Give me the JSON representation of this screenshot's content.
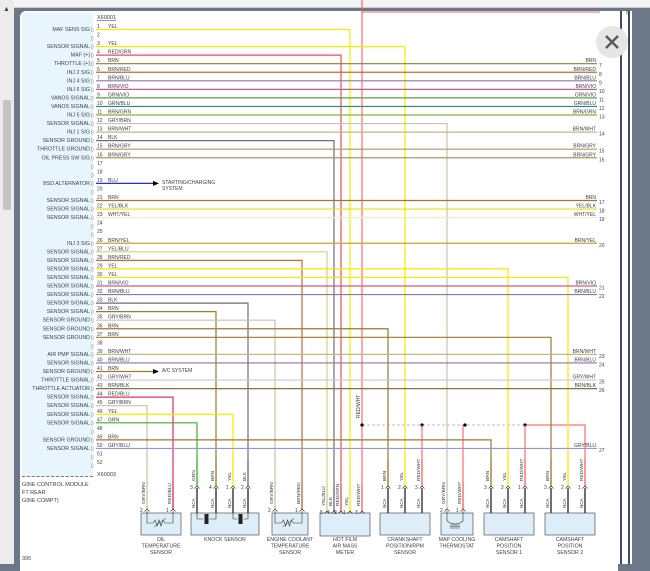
{
  "connector_top": "X60001",
  "connector_bottom": "X60003",
  "module_caption": [
    "GINE CONTROL MODULE",
    "FT REAR",
    "GINE COMPT)"
  ],
  "page_number": "395",
  "top_wire_number": "6",
  "splice_wire_label": "RED/WHT",
  "close_button": {
    "icon": "close-icon"
  },
  "wire_colors": {
    "YEL": "#f2ec00",
    "RED/GRN": "#e2505a",
    "BRN": "#9a7a2e",
    "BRN/RED": "#c46a3a",
    "BRN/BLU": "#8878a8",
    "BRN/VIO": "#d05a82",
    "GRN/VIO": "#5aa04a",
    "GRN/BLU": "#2f8a6a",
    "BRN/GRN": "#88b040",
    "GRY/BRN": "#cac2aa",
    "BRN/WHT": "#c8b486",
    "BLK": "#6e6e6e",
    "BRN/GRY": "#a89860",
    "BLU": "#1e2ee6",
    "YEL/BLK": "#e6e000",
    "WHT/YEL": "#eeeec4",
    "BRN/YEL": "#c4a434",
    "YEL/BLU": "#d8d27a",
    "GRY/WHT": "#c8c8dc",
    "BRN/BLK": "#8a7040",
    "RED/BLU": "#e0305e",
    "GRN": "#3cb02c",
    "GRY/BLU": "#9494e4",
    "RED/WHT": "#ff4c4c"
  },
  "pins": [
    {
      "n": "1",
      "label": "MAF SENS SIG",
      "wire": "YEL",
      "to": {
        "comp": "hfm",
        "pin": "1"
      }
    },
    {
      "n": "2"
    },
    {
      "n": "3",
      "label": "SENSOR SIGNAL",
      "wire": "YEL",
      "to": {
        "comp": "crank",
        "pin": "2"
      }
    },
    {
      "n": "4",
      "label": "MAF (+)",
      "wire": "RED/GRN",
      "to": {
        "comp": "hfm",
        "pin": "2"
      }
    },
    {
      "n": "5",
      "label": "THROTTLE (+)",
      "wire": "BRN",
      "right": {
        "wire": "BRN",
        "n": "7"
      }
    },
    {
      "n": "6",
      "label": "INJ 2 SIG",
      "wire": "BRN/RED",
      "right": {
        "wire": "BRN/RED",
        "n": "8"
      }
    },
    {
      "n": "7",
      "label": "INJ 4 SIG",
      "wire": "BRN/BLU",
      "right": {
        "wire": "BRN/BLU",
        "n": "9"
      }
    },
    {
      "n": "8",
      "label": "INJ 6 SIG",
      "wire": "BRN/VIO",
      "right": {
        "wire": "BRN/VIO",
        "n": "10"
      }
    },
    {
      "n": "9",
      "label": "VANOS SIGNAL",
      "wire": "GRN/VIO",
      "right": {
        "wire": "GRN/VIO",
        "n": "11"
      }
    },
    {
      "n": "10",
      "label": "VANOS SIGNAL",
      "wire": "GRN/BLU",
      "right": {
        "wire": "GRN/BLU",
        "n": "12"
      }
    },
    {
      "n": "11",
      "label": "INJ 5 SIG",
      "wire": "BRN/GRN",
      "right": {
        "wire": "BRN/GRN",
        "n": "13"
      }
    },
    {
      "n": "12",
      "label": "SENSOR SIGNAL",
      "wire": "GRY/BRN",
      "to": {
        "comp": "thermo",
        "pin": "2"
      }
    },
    {
      "n": "13",
      "label": "INJ 1 SIG",
      "wire": "BRN/WHT",
      "right": {
        "wire": "BRN/WHT",
        "n": "14"
      }
    },
    {
      "n": "14",
      "label": "SENSOR GROUND",
      "wire": "BLK",
      "to": {
        "comp": "hfm",
        "pin": "4"
      }
    },
    {
      "n": "15",
      "label": "THROTTLE GROUND",
      "wire": "BRN/GRY",
      "right": {
        "wire": "BRN/GRY",
        "n": "15"
      }
    },
    {
      "n": "16",
      "label": "OIL PRESS SW SIG",
      "wire": "BRN/GRY",
      "right": {
        "wire": "BRN/GRY",
        "n": "16"
      }
    },
    {
      "n": "17"
    },
    {
      "n": "18"
    },
    {
      "n": "19",
      "label": "BSD ALTERNATOR",
      "wire": "BLU",
      "arrow": [
        "STARTING/CHARGING",
        "SYSTEM"
      ]
    },
    {
      "n": "20"
    },
    {
      "n": "21",
      "label": "SENSOR SIGNAL",
      "wire": "BRN",
      "right": {
        "wire": "BRN",
        "n": "17"
      }
    },
    {
      "n": "22",
      "label": "SENSOR SIGNAL",
      "wire": "YEL/BLK",
      "right": {
        "wire": "YEL/BLK",
        "n": "18"
      }
    },
    {
      "n": "23",
      "label": "SENSOR SIGNAL",
      "wire": "WHT/YEL",
      "right": {
        "wire": "WHT/YEL",
        "n": "19"
      }
    },
    {
      "n": "24"
    },
    {
      "n": "25"
    },
    {
      "n": "26",
      "label": "INJ 3 SIG",
      "wire": "BRN/YEL",
      "right": {
        "wire": "BRN/YEL",
        "n": "20"
      }
    },
    {
      "n": "27",
      "label": "SENSOR SIGNAL",
      "wire": "YEL/BLU",
      "to": {
        "comp": "hfm",
        "pin": "5"
      }
    },
    {
      "n": "28",
      "label": "SENSOR SIGNAL",
      "wire": "BRN/RED",
      "to": {
        "comp": "ect",
        "pin": "1"
      }
    },
    {
      "n": "29",
      "label": "SENSOR SIGNAL",
      "wire": "YEL",
      "to": {
        "comp": "cam1",
        "pin": "2"
      }
    },
    {
      "n": "30",
      "label": "SENSOR SIGNAL",
      "wire": "YEL",
      "to": {
        "comp": "cam2",
        "pin": "2"
      }
    },
    {
      "n": "31",
      "label": "SENSOR SIGNAL",
      "wire": "BRN/VIO",
      "right": {
        "wire": "BRN/VIO",
        "n": "21"
      }
    },
    {
      "n": "32",
      "label": "SENSOR SIGNAL",
      "wire": "BRN/BLU",
      "right": {
        "wire": "BRN/BLU",
        "n": "22"
      }
    },
    {
      "n": "33",
      "label": "SENSOR SIGNAL",
      "wire": "BLK",
      "to": {
        "comp": "knock",
        "pin": "2"
      }
    },
    {
      "n": "34",
      "label": "SENSOR SIGNAL",
      "wire": "BRN",
      "to": {
        "comp": "knock",
        "pin": "4"
      }
    },
    {
      "n": "35",
      "label": "SENSOR GROUND",
      "wire": "GRY/BRN",
      "to": {
        "comp": "ect",
        "pin": "2"
      }
    },
    {
      "n": "36",
      "label": "SENSOR GROUND",
      "wire": "BRN",
      "to": {
        "comp": "crank",
        "pin": "1"
      }
    },
    {
      "n": "37",
      "label": "SENSOR GROUND",
      "wire": "BRN",
      "to": {
        "comp": "cam2",
        "pin": "3"
      }
    },
    {
      "n": "38"
    },
    {
      "n": "39",
      "label": "AIR PMP SIGNAL",
      "wire": "BRN/WHT",
      "right": {
        "wire": "BRN/WHT",
        "n": "23"
      }
    },
    {
      "n": "40",
      "label": "SENSOR SIGNAL",
      "wire": "BRN/BLU",
      "right": {
        "wire": "BRN/BLU",
        "n": "24"
      }
    },
    {
      "n": "41",
      "label": "SENSOR GROUND",
      "wire": "BRN",
      "arrow": [
        "A/C SYSTEM"
      ]
    },
    {
      "n": "42",
      "label": "THROTTLE SIGNAL",
      "wire": "GRY/WHT",
      "right": {
        "wire": "GRY/WHT",
        "n": "25"
      }
    },
    {
      "n": "43",
      "label": "THROTTLE ACTUATOR",
      "wire": "BRN/BLK",
      "right": {
        "wire": "BRN/BLK",
        "n": "26"
      }
    },
    {
      "n": "44",
      "label": "SENSOR SIGNAL",
      "wire": "RED/BLU",
      "to": {
        "comp": "oil",
        "pin": "1"
      }
    },
    {
      "n": "45",
      "label": "SENSOR SIGNAL",
      "wire": "GRY/BRN",
      "to": {
        "comp": "oil",
        "pin": "2"
      }
    },
    {
      "n": "46",
      "label": "SENSOR SIGNAL",
      "wire": "YEL",
      "to": {
        "comp": "knock",
        "pin": "1"
      }
    },
    {
      "n": "47",
      "label": "SENSOR SIGNAL",
      "wire": "GRN",
      "to": {
        "comp": "knock",
        "pin": "3"
      }
    },
    {
      "n": "48"
    },
    {
      "n": "49",
      "label": "SENSOR GROUND",
      "wire": "BRN",
      "to": {
        "comp": "cam1",
        "pin": "3"
      }
    },
    {
      "n": "50",
      "label": "SENSOR SIGNAL",
      "wire": "GRY/BLU",
      "right": {
        "wire": "GRY/BLU",
        "n": "27"
      }
    },
    {
      "n": "51"
    },
    {
      "n": "52"
    }
  ],
  "components": [
    {
      "id": "oil",
      "name": [
        "OIL",
        "TEMPERATURE",
        "SENSOR"
      ],
      "symbol": "thermistor",
      "pins": [
        {
          "n": "2",
          "wire": "GRY/BRN"
        },
        {
          "n": "1",
          "wire": "RED/BLU"
        }
      ]
    },
    {
      "id": "knock",
      "name": [
        "KNOCK SENSOR"
      ],
      "symbol": "piezo",
      "inner": "NCA",
      "pins": [
        {
          "n": "3",
          "wire": "GRN"
        },
        {
          "n": "4",
          "wire": "BRN"
        },
        {
          "n": "1",
          "wire": "YEL"
        },
        {
          "n": "2",
          "wire": "BLK"
        }
      ]
    },
    {
      "id": "ect",
      "name": [
        "ENGINE COOLANT",
        "TEMPERATURE",
        "SENSOR"
      ],
      "symbol": "thermistor",
      "pins": [
        {
          "n": "2",
          "wire": "GRY/BRN"
        },
        {
          "n": "1",
          "wire": "BRN/RED"
        }
      ]
    },
    {
      "id": "hfm",
      "name": [
        "HOT FILM",
        "AIR MASS",
        "METER"
      ],
      "pins": [
        {
          "n": "5",
          "wire": "YEL/BLU"
        },
        {
          "n": "4",
          "wire": "BLK"
        },
        {
          "n": "2",
          "wire": "RED/GRN"
        },
        {
          "n": "1",
          "wire": "YEL"
        },
        {
          "n": "3",
          "wire": "RED/WHT"
        }
      ]
    },
    {
      "id": "crank",
      "name": [
        "CRANKSHAFT",
        "POSITION/RPM",
        "SENSOR"
      ],
      "inner": "NCA",
      "pins": [
        {
          "n": "1",
          "wire": "BRN"
        },
        {
          "n": "2",
          "wire": "YEL"
        },
        {
          "n": "3",
          "wire": "RED/WHT"
        }
      ]
    },
    {
      "id": "thermo",
      "name": [
        "MAP COOLING",
        "THERMOSTAT"
      ],
      "symbol": "heater",
      "pins": [
        {
          "n": "2",
          "wire": "GRY/BRN"
        },
        {
          "n": "1",
          "wire": "RED/WHT"
        }
      ]
    },
    {
      "id": "cam1",
      "name": [
        "CAMSHAFT",
        "POSITION",
        "SENSOR 1"
      ],
      "inner": "NCA",
      "pins": [
        {
          "n": "3",
          "wire": "BRN"
        },
        {
          "n": "2",
          "wire": "YEL"
        },
        {
          "n": "1",
          "wire": "RED/WHT"
        }
      ]
    },
    {
      "id": "cam2",
      "name": [
        "CAMSHAFT",
        "POSITION",
        "SENSOR 2"
      ],
      "inner": "NCA",
      "pins": [
        {
          "n": "3",
          "wire": "BRN"
        },
        {
          "n": "2",
          "wire": "YEL"
        },
        {
          "n": "1",
          "wire": "RED/WHT"
        }
      ]
    }
  ]
}
